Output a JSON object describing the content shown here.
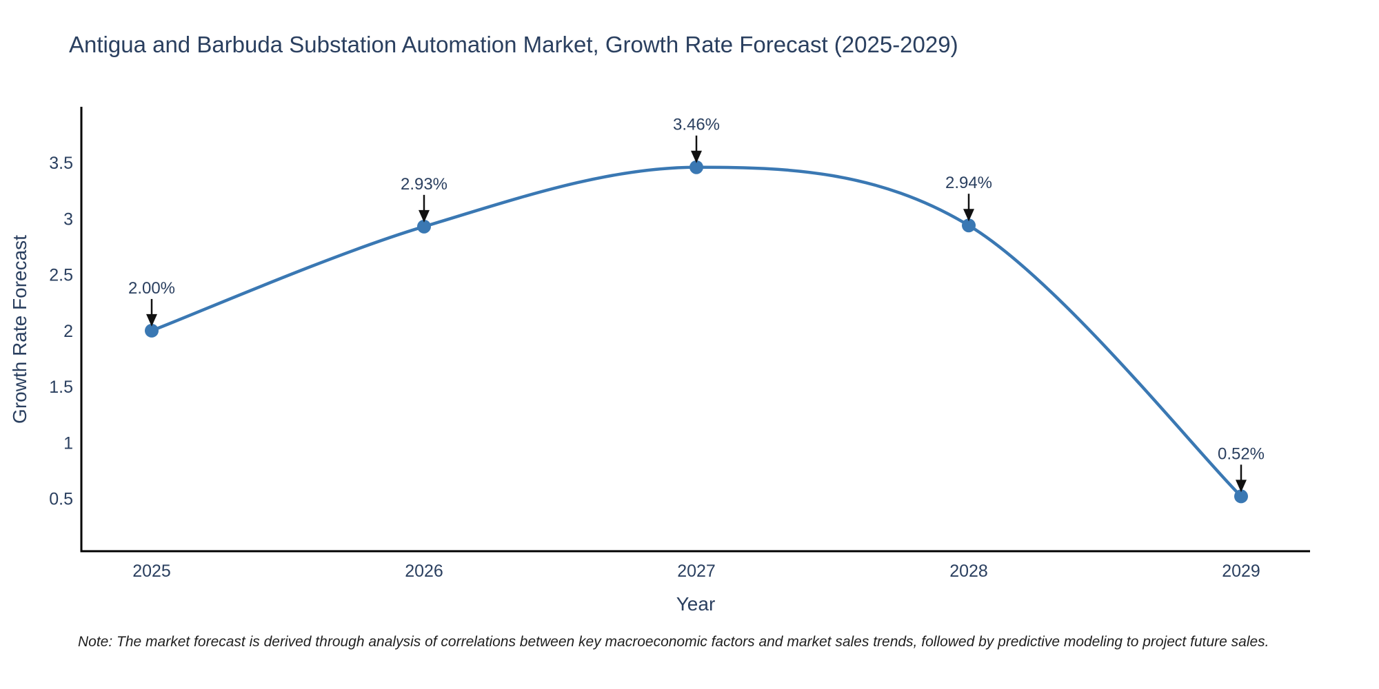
{
  "chart_data": {
    "type": "line",
    "title": "Antigua and Barbuda Substation Automation Market, Growth Rate Forecast (2025-2029)",
    "xlabel": "Year",
    "ylabel": "Growth Rate Forecast",
    "categories": [
      "2025",
      "2026",
      "2027",
      "2028",
      "2029"
    ],
    "series": [
      {
        "name": "Growth Rate Forecast",
        "values": [
          2.0,
          2.93,
          3.46,
          2.94,
          0.52
        ],
        "point_labels": [
          "2.00%",
          "2.93%",
          "3.46%",
          "2.94%",
          "0.52%"
        ]
      }
    ],
    "yticks": [
      0.5,
      1,
      1.5,
      2,
      2.5,
      3,
      3.5
    ],
    "ylim": [
      0.03,
      4.0
    ],
    "line_shape": "spline",
    "grid": false,
    "legend_position": "none",
    "colors": {
      "line": "#3a78b3",
      "marker": "#3a78b3",
      "axis_line": "#000000",
      "text": "#2a3f5f",
      "arrow": "#111111",
      "background": "#ffffff"
    }
  },
  "footnote": {
    "text": "Note: The market forecast is derived through analysis of correlations between key macroeconomic factors and market sales trends, followed by predictive modeling to project future sales."
  }
}
